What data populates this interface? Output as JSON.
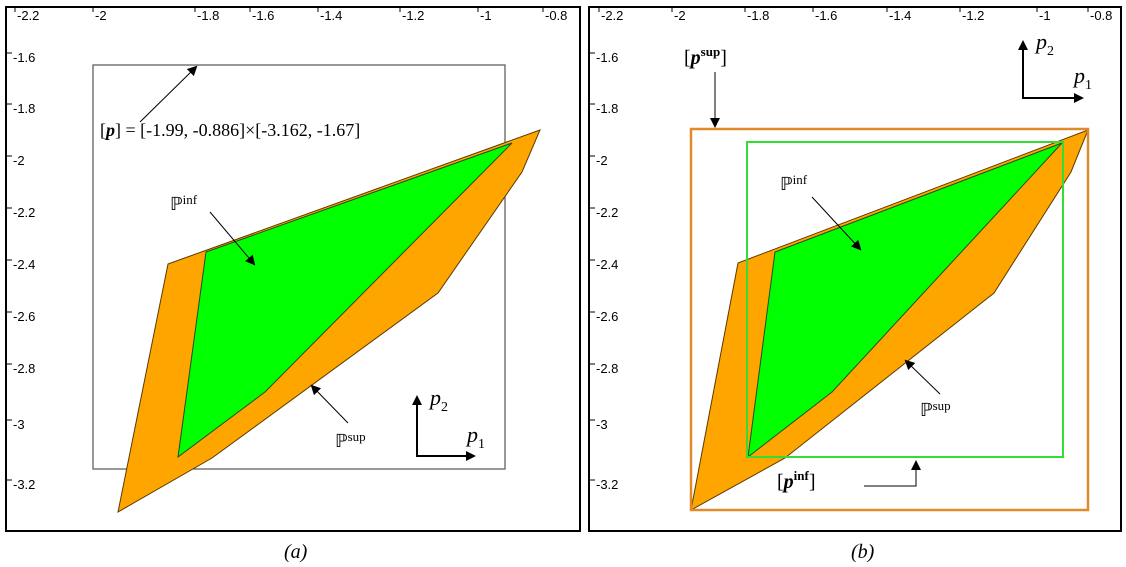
{
  "panel_a": {
    "x_ticks": [
      "-2.2",
      "-2",
      "-1.8",
      "-1.6",
      "-1.4",
      "-1.2",
      "-1",
      "-0.8"
    ],
    "y_ticks": [
      "-1.6",
      "-1.8",
      "-2",
      "-2.2",
      "-2.4",
      "-2.6",
      "-2.8",
      "-3",
      "-3.2"
    ],
    "box_label_p": "p",
    "box_label_rest": "] = [-1.99, -0.886]×[-3.162, -1.67]",
    "inf_label": "ℙ",
    "inf_sup": "inf",
    "sup_label": "ℙ",
    "sup_sup": "sup",
    "axis_p": "p",
    "axis_1": "1",
    "axis_2": "2",
    "caption": "(a)"
  },
  "panel_b": {
    "x_ticks": [
      "-2.2",
      "-2",
      "-1.8",
      "-1.6",
      "-1.4",
      "-1.2",
      "-1",
      "-0.8"
    ],
    "y_ticks": [
      "-1.6",
      "-1.8",
      "-2",
      "-2.2",
      "-2.4",
      "-2.6",
      "-2.8",
      "-3",
      "-3.2"
    ],
    "psup_p": "p",
    "psup_sup": "sup",
    "pinf_p": "p",
    "pinf_sup": "inf",
    "inf_label": "ℙ",
    "inf_sup": "inf",
    "sup_label": "ℙ",
    "sup_sup": "sup",
    "axis_p": "p",
    "axis_1": "1",
    "axis_2": "2",
    "caption": "(b)"
  },
  "colors": {
    "orange": "#FFA500",
    "green": "#00FF00",
    "box_orange": "#E08A2C",
    "box_green": "#33DD33",
    "outline": "#555555"
  }
}
